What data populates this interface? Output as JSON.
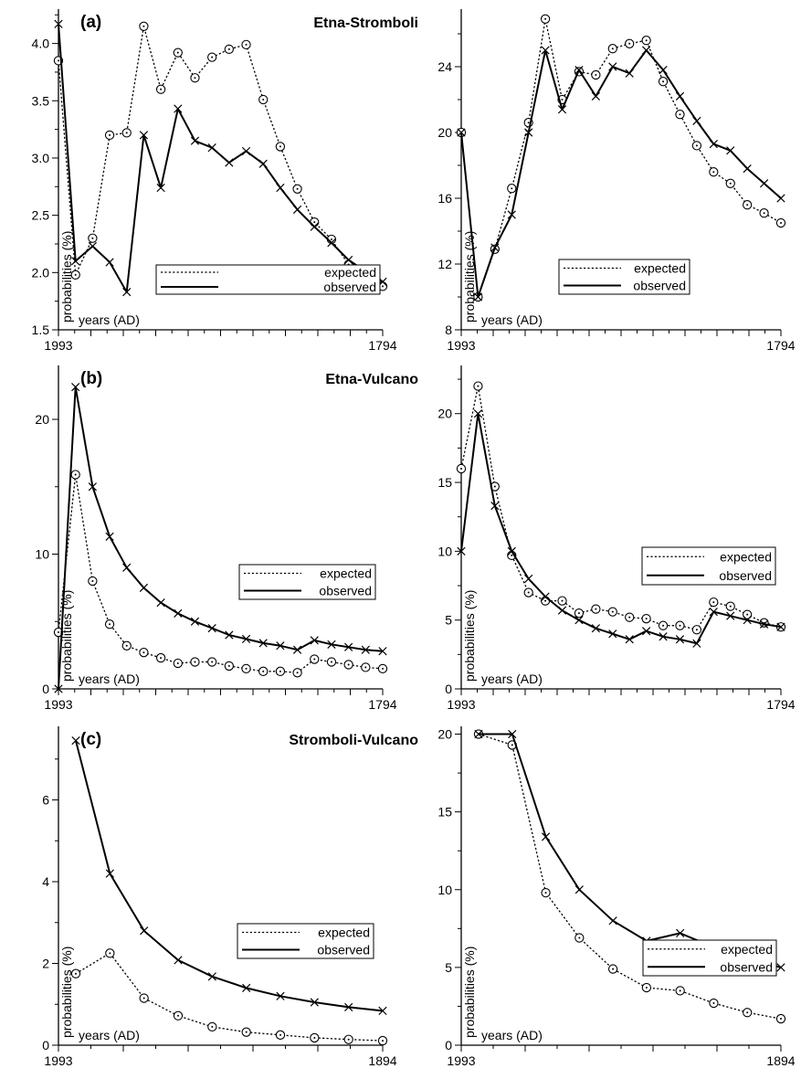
{
  "figure": {
    "legend_expected": "expected",
    "legend_observed": "observed",
    "ylabel": "probabilities (%)",
    "xlabel": "years (AD)"
  },
  "chart_data": [
    {
      "id": "a-left",
      "type": "line",
      "tag": "(a)",
      "title": "Etna-Stromboli",
      "xlabel": "years (AD)",
      "ylabel": "probabilities (%)",
      "x_tick_labels": [
        "1993",
        "1794"
      ],
      "ylim": [
        1.5,
        4.3
      ],
      "yticks": [
        1.5,
        2.0,
        2.5,
        3.0,
        3.5,
        4.0
      ],
      "ytick_labels": [
        "1.5",
        "2.0",
        "2.5",
        "3.0",
        "3.5",
        "4.0"
      ],
      "n_x_intervals": 20,
      "legend_position": "bottom-right",
      "series": [
        {
          "name": "expected",
          "style": "dotted",
          "marker": "circle",
          "values": [
            3.85,
            1.98,
            2.3,
            3.2,
            3.22,
            4.15,
            3.6,
            3.92,
            3.7,
            3.88,
            3.95,
            3.99,
            3.51,
            3.1,
            2.73,
            2.44,
            2.29,
            2.07,
            2.01,
            1.88
          ]
        },
        {
          "name": "observed",
          "style": "solid",
          "marker": "cross",
          "values": [
            4.17,
            2.1,
            2.23,
            2.09,
            1.83,
            3.2,
            2.74,
            3.43,
            3.15,
            3.09,
            2.96,
            3.06,
            2.95,
            2.74,
            2.55,
            2.4,
            2.26,
            2.11,
            2.01,
            1.92
          ]
        }
      ]
    },
    {
      "id": "a-right",
      "type": "line",
      "tag": "",
      "title": "",
      "xlabel": "years (AD)",
      "ylabel": "probabilities (%)",
      "x_tick_labels": [
        "1993",
        "1794"
      ],
      "ylim": [
        8,
        27.5
      ],
      "yticks": [
        8,
        12,
        16,
        20,
        24
      ],
      "ytick_labels": [
        "8",
        "12",
        "16",
        "20",
        "24"
      ],
      "n_x_intervals": 20,
      "legend_position": "right",
      "series": [
        {
          "name": "expected",
          "style": "dotted",
          "marker": "circle",
          "values": [
            20.0,
            10.0,
            12.9,
            16.6,
            20.6,
            26.9,
            22.0,
            23.7,
            23.5,
            25.1,
            25.4,
            25.6,
            23.1,
            21.1,
            19.2,
            17.6,
            16.9,
            15.6,
            15.1,
            14.5
          ]
        },
        {
          "name": "observed",
          "style": "solid",
          "marker": "cross",
          "values": [
            20.0,
            10.0,
            13.0,
            15.0,
            20.0,
            25.0,
            21.4,
            23.8,
            22.2,
            24.0,
            23.6,
            25.0,
            23.8,
            22.2,
            20.7,
            19.3,
            18.9,
            17.8,
            16.9,
            16.0
          ]
        }
      ]
    },
    {
      "id": "b-left",
      "type": "line",
      "tag": "(b)",
      "title": "Etna-Vulcano",
      "xlabel": "years (AD)",
      "ylabel": "probabilities (%)",
      "x_tick_labels": [
        "1993",
        "1794"
      ],
      "ylim": [
        0,
        24
      ],
      "yticks": [
        0,
        10,
        20
      ],
      "ytick_labels": [
        "0",
        "10",
        "20"
      ],
      "n_x_intervals": 20,
      "legend_position": "right",
      "series": [
        {
          "name": "expected",
          "style": "dotted",
          "marker": "circle",
          "values": [
            4.2,
            15.9,
            8.0,
            4.8,
            3.2,
            2.7,
            2.3,
            1.9,
            2.0,
            2.0,
            1.7,
            1.5,
            1.3,
            1.3,
            1.2,
            2.2,
            2.0,
            1.8,
            1.6,
            1.5
          ]
        },
        {
          "name": "observed",
          "style": "solid",
          "marker": "cross",
          "values": [
            0.0,
            22.4,
            15.0,
            11.3,
            9.0,
            7.5,
            6.4,
            5.6,
            5.0,
            4.5,
            4.0,
            3.7,
            3.4,
            3.2,
            2.9,
            3.6,
            3.3,
            3.1,
            2.9,
            2.8
          ]
        }
      ]
    },
    {
      "id": "b-right",
      "type": "line",
      "tag": "",
      "title": "",
      "xlabel": "years (AD)",
      "ylabel": "probabilities (%)",
      "x_tick_labels": [
        "1993",
        "1794"
      ],
      "ylim": [
        0,
        23.5
      ],
      "yticks": [
        0,
        5,
        10,
        15,
        20
      ],
      "ytick_labels": [
        "0",
        "5",
        "10",
        "15",
        "20"
      ],
      "n_x_intervals": 20,
      "legend_position": "right",
      "series": [
        {
          "name": "expected",
          "style": "dotted",
          "marker": "circle",
          "values": [
            16.0,
            22.0,
            14.7,
            9.7,
            7.0,
            6.4,
            6.4,
            5.5,
            5.8,
            5.6,
            5.2,
            5.1,
            4.6,
            4.6,
            4.3,
            6.3,
            6.0,
            5.4,
            4.8,
            4.5
          ]
        },
        {
          "name": "observed",
          "style": "solid",
          "marker": "cross",
          "values": [
            10.0,
            20.0,
            13.3,
            10.0,
            8.0,
            6.7,
            5.7,
            5.0,
            4.4,
            4.0,
            3.6,
            4.2,
            3.8,
            3.6,
            3.3,
            5.6,
            5.3,
            5.0,
            4.7,
            4.5
          ]
        }
      ]
    },
    {
      "id": "c-left",
      "type": "line",
      "tag": "(c)",
      "title": "Stromboli-Vulcano",
      "xlabel": "years (AD)",
      "ylabel": "probabilities (%)",
      "x_tick_labels": [
        "1993",
        "1894"
      ],
      "ylim": [
        0,
        7.8
      ],
      "yticks": [
        0,
        2,
        4,
        6
      ],
      "ytick_labels": [
        "0",
        "2",
        "4",
        "6"
      ],
      "n_x_intervals": 10,
      "legend_position": "right",
      "series": [
        {
          "name": "expected",
          "style": "dotted",
          "marker": "circle",
          "values": [
            1.75,
            2.25,
            1.15,
            0.72,
            0.45,
            0.32,
            0.25,
            0.18,
            0.14,
            0.11
          ]
        },
        {
          "name": "observed",
          "style": "solid",
          "marker": "cross",
          "values": [
            7.45,
            4.2,
            2.8,
            2.08,
            1.68,
            1.4,
            1.2,
            1.05,
            0.93,
            0.84
          ]
        }
      ]
    },
    {
      "id": "c-right",
      "type": "line",
      "tag": "",
      "title": "",
      "xlabel": "years (AD)",
      "ylabel": "probabilities (%)",
      "x_tick_labels": [
        "1993",
        "1894"
      ],
      "ylim": [
        0,
        20.5
      ],
      "yticks": [
        0,
        5,
        10,
        15,
        20
      ],
      "ytick_labels": [
        "0",
        "5",
        "10",
        "15",
        "20"
      ],
      "n_x_intervals": 10,
      "legend_position": "right",
      "series": [
        {
          "name": "expected",
          "style": "dotted",
          "marker": "circle",
          "values": [
            20.0,
            19.3,
            9.8,
            6.9,
            4.9,
            3.7,
            3.5,
            2.7,
            2.1,
            1.7
          ]
        },
        {
          "name": "observed",
          "style": "solid",
          "marker": "cross",
          "values": [
            20.0,
            20.0,
            13.4,
            10.0,
            8.0,
            6.7,
            7.2,
            6.3,
            5.6,
            5.0
          ]
        }
      ]
    }
  ]
}
